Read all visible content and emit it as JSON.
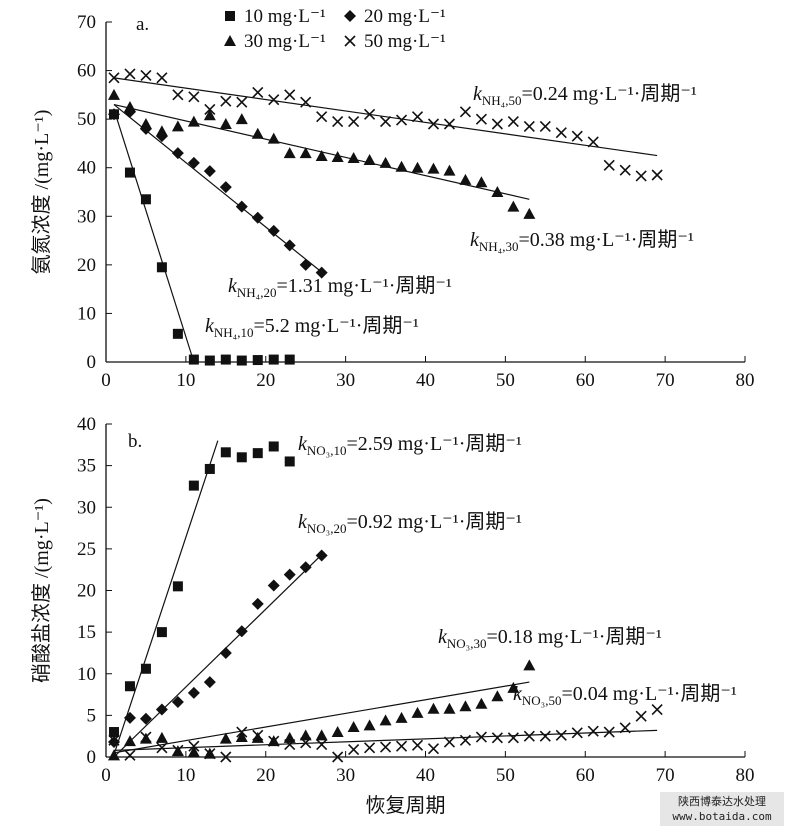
{
  "chart_data": [
    {
      "type": "scatter",
      "panel_label": "a.",
      "ylabel": "氨氮浓度 /(mg·L⁻¹)",
      "xlabel": "",
      "xlim": [
        0,
        80
      ],
      "ylim": [
        0,
        70
      ],
      "xticks": [
        "0",
        "10",
        "20",
        "30",
        "40",
        "50",
        "60",
        "70",
        "80"
      ],
      "yticks": [
        "0",
        "10",
        "20",
        "30",
        "40",
        "50",
        "60",
        "70"
      ],
      "legend": "top-center",
      "series": [
        {
          "name": "10 mg·L⁻¹",
          "marker": "square",
          "x": [
            1,
            3,
            5,
            7,
            9,
            11,
            13,
            15,
            17,
            19,
            21,
            23
          ],
          "y": [
            51,
            39,
            33.5,
            19.5,
            5.8,
            0.5,
            0.3,
            0.5,
            0.3,
            0.4,
            0.5,
            0.5
          ],
          "fit": [
            [
              1,
              52
            ],
            [
              11,
              0
            ]
          ]
        },
        {
          "name": "20 mg·L⁻¹",
          "marker": "diamond",
          "x": [
            1,
            3,
            5,
            7,
            9,
            11,
            13,
            15,
            17,
            19,
            21,
            23,
            25,
            27
          ],
          "y": [
            51,
            51.5,
            48,
            46.5,
            43,
            41,
            39.3,
            36,
            32,
            29.7,
            27,
            24,
            20,
            18.4
          ],
          "fit": [
            [
              1,
              53
            ],
            [
              27,
              18.5
            ]
          ]
        },
        {
          "name": "30 mg·L⁻¹",
          "marker": "triangle",
          "x": [
            1,
            3,
            5,
            7,
            9,
            11,
            13,
            15,
            17,
            19,
            21,
            23,
            25,
            27,
            29,
            31,
            33,
            35,
            37,
            39,
            41,
            43,
            45,
            47,
            49,
            51,
            53
          ],
          "y": [
            55,
            52.5,
            49,
            47.5,
            48.5,
            49.5,
            50.8,
            49,
            50,
            47,
            46,
            43,
            43,
            42.4,
            42.2,
            42,
            41.6,
            41,
            40.2,
            40,
            39.8,
            39.4,
            37.5,
            37,
            35,
            32,
            30.5
          ],
          "fit": [
            [
              1,
              53
            ],
            [
              53,
              33.5
            ]
          ]
        },
        {
          "name": "50 mg·L⁻¹",
          "marker": "cross",
          "x": [
            1,
            3,
            5,
            7,
            9,
            11,
            13,
            15,
            17,
            19,
            21,
            23,
            25,
            27,
            29,
            31,
            33,
            35,
            37,
            39,
            41,
            43,
            45,
            47,
            49,
            51,
            53,
            55,
            57,
            59,
            61,
            63,
            65,
            67,
            69
          ],
          "y": [
            58.5,
            59.3,
            59,
            58.5,
            55,
            54.6,
            52,
            53.7,
            53.5,
            55.5,
            54,
            55,
            53.5,
            50.5,
            49.5,
            49.5,
            51,
            49.5,
            49.8,
            50.5,
            49,
            49,
            51.5,
            50,
            49,
            49.5,
            48.5,
            48.5,
            47.2,
            46.5,
            45.3,
            40.5,
            39.5,
            38.3,
            38.5
          ],
          "fit": [
            [
              1,
              58.5
            ],
            [
              69,
              42.5
            ]
          ]
        }
      ],
      "annotations": [
        {
          "sub": "NH₄,50",
          "text": "=0.24 mg·L⁻¹·周期⁻¹"
        },
        {
          "sub": "NH₄,30",
          "text": "=0.38 mg·L⁻¹·周期⁻¹"
        },
        {
          "sub": "NH₄,20",
          "text": "=1.31 mg·L⁻¹·周期⁻¹"
        },
        {
          "sub": "NH₄,10",
          "text": "=5.2 mg·L⁻¹·周期⁻¹"
        }
      ]
    },
    {
      "type": "scatter",
      "panel_label": "b.",
      "ylabel": "硝酸盐浓度 /(mg·L⁻¹)",
      "xlabel": "恢复周期",
      "xlim": [
        0,
        80
      ],
      "ylim": [
        0,
        40
      ],
      "xticks": [
        "0",
        "10",
        "20",
        "30",
        "40",
        "50",
        "60",
        "70",
        "80"
      ],
      "yticks": [
        "0",
        "5",
        "10",
        "15",
        "20",
        "25",
        "30",
        "35",
        "40"
      ],
      "series": [
        {
          "marker": "square",
          "x": [
            1,
            3,
            5,
            7,
            9,
            11,
            13,
            15,
            17,
            19,
            21,
            23
          ],
          "y": [
            3,
            8.5,
            10.6,
            15,
            20.5,
            32.6,
            34.6,
            36.6,
            36,
            36.5,
            37.3,
            35.5
          ],
          "fit": [
            [
              1,
              0.3
            ],
            [
              14,
              38
            ]
          ]
        },
        {
          "marker": "diamond",
          "x": [
            1,
            3,
            5,
            7,
            9,
            11,
            13,
            15,
            17,
            19,
            21,
            23,
            25,
            27
          ],
          "y": [
            1.8,
            4.7,
            4.6,
            5.7,
            6.6,
            7.7,
            9,
            12.5,
            15.1,
            18.4,
            20.6,
            21.9,
            22.8,
            24.2
          ],
          "fit": [
            [
              1,
              0
            ],
            [
              27,
              24.3
            ]
          ]
        },
        {
          "marker": "triangle",
          "x": [
            1,
            3,
            5,
            7,
            9,
            11,
            13,
            15,
            17,
            19,
            21,
            23,
            25,
            27,
            29,
            31,
            33,
            35,
            37,
            39,
            41,
            43,
            45,
            47,
            49,
            51,
            53
          ],
          "y": [
            0.2,
            1.9,
            2.2,
            2.3,
            0.7,
            0.6,
            0.4,
            2.2,
            2.4,
            2.3,
            1.9,
            2.3,
            2.6,
            2.6,
            3,
            3.6,
            3.8,
            4.4,
            4.7,
            5.3,
            5.8,
            5.8,
            6.1,
            6.4,
            7.3,
            8.3,
            11
          ],
          "fit": [
            [
              1,
              0.5
            ],
            [
              53,
              9
            ]
          ]
        },
        {
          "marker": "cross",
          "x": [
            1,
            3,
            5,
            7,
            9,
            11,
            13,
            15,
            17,
            19,
            21,
            23,
            25,
            27,
            29,
            31,
            33,
            35,
            37,
            39,
            41,
            43,
            45,
            47,
            49,
            51,
            53,
            55,
            57,
            59,
            61,
            63,
            65,
            67,
            69
          ],
          "y": [
            2,
            0.2,
            2.4,
            1.1,
            0.8,
            1.3,
            0.4,
            0,
            3,
            2.6,
            1.9,
            1.5,
            1.7,
            1.5,
            0,
            0.9,
            1.1,
            1.2,
            1.3,
            1.4,
            1,
            1.8,
            2,
            2.4,
            2.3,
            2.3,
            2.5,
            2.5,
            2.6,
            2.9,
            3.1,
            3,
            3.5,
            4.9,
            5.7
          ],
          "fit": [
            [
              1,
              0.8
            ],
            [
              69,
              3.2
            ]
          ]
        }
      ],
      "annotations": [
        {
          "sub": "NO₃,10",
          "text": "=2.59 mg·L⁻¹·周期⁻¹"
        },
        {
          "sub": "NO₃,20",
          "text": "=0.92 mg·L⁻¹·周期⁻¹"
        },
        {
          "sub": "NO₃,30",
          "text": "=0.18 mg·L⁻¹·周期⁻¹"
        },
        {
          "sub": "NO₃,50",
          "text": "=0.04 mg·L⁻¹·周期⁻¹"
        }
      ]
    }
  ],
  "watermark": {
    "line1": "陕西博泰达水处理",
    "line2": "www.botaida.com"
  },
  "annotation_k": "k"
}
